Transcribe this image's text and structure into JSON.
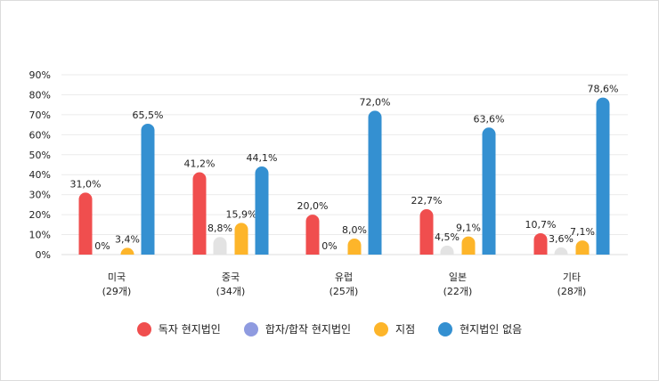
{
  "chart_data": {
    "type": "bar",
    "categories": [
      "미국",
      "중국",
      "유럽",
      "일본",
      "기타"
    ],
    "category_counts": [
      "(29개)",
      "(34개)",
      "(25개)",
      "(22개)",
      "(28개)"
    ],
    "series": [
      {
        "name": "독자 현지법인",
        "color": "#f04e4e",
        "legend_color": "#f04e4e",
        "values": [
          31.0,
          41.2,
          20.0,
          22.7,
          10.7
        ],
        "labels": [
          "31,0%",
          "41,2%",
          "20,0%",
          "22,7%",
          "10,7%"
        ]
      },
      {
        "name": "합자/합작 현지법인",
        "color": "#e3e3e3",
        "legend_color": "#8f9be0",
        "values": [
          0,
          8.8,
          0,
          4.5,
          3.6
        ],
        "labels": [
          "0%",
          "8,8%",
          "0%",
          "4,5%",
          "3,6%"
        ]
      },
      {
        "name": "지점",
        "color": "#fdb52a",
        "legend_color": "#fdb52a",
        "values": [
          3.4,
          15.9,
          8.0,
          9.1,
          7.1
        ],
        "labels": [
          "3,4%",
          "15,9%",
          "8,0%",
          "9,1%",
          "7,1%"
        ]
      },
      {
        "name": "현지법인 없음",
        "color": "#3490d1",
        "legend_color": "#3490d1",
        "values": [
          65.5,
          44.1,
          72.0,
          63.6,
          78.6
        ],
        "labels": [
          "65,5%",
          "44,1%",
          "72,0%",
          "63,6%",
          "78,6%"
        ]
      }
    ],
    "yticks": [
      "0%",
      "10%",
      "20%",
      "30%",
      "40%",
      "50%",
      "60%",
      "70%",
      "80%",
      "90%"
    ],
    "ylim": [
      0,
      90
    ],
    "grid": true,
    "legend_position": "bottom"
  }
}
